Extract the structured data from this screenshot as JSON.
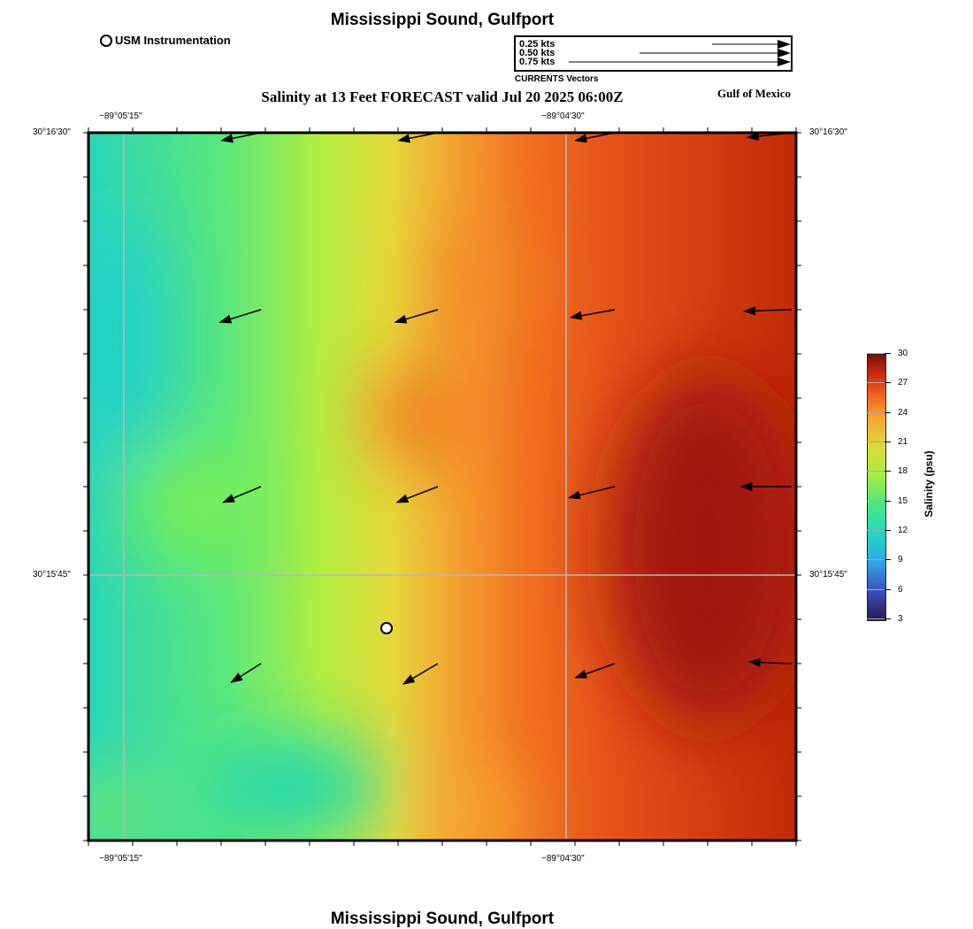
{
  "header": {
    "title": "Mississippi Sound, Gulfport",
    "subtitle": "Salinity at 13 Feet FORECAST valid Jul 20 2025 06:00Z",
    "region_label": "Gulf of Mexico",
    "station_legend": "USM Instrumentation",
    "footer_title": "Mississippi Sound, Gulfport"
  },
  "vector_legend": {
    "title": "CURRENTS Vectors",
    "entries": [
      {
        "label": "0.25 kts",
        "speed": 0.25
      },
      {
        "label": "0.50 kts",
        "speed": 0.5
      },
      {
        "label": "0.75 kts",
        "speed": 0.75
      }
    ]
  },
  "axes": {
    "lon_labels": [
      "−89°05'15\"",
      "−89°04'30\""
    ],
    "lat_labels": [
      "30°16'30\"",
      "30°15'45\""
    ]
  },
  "colorbar": {
    "label": "Salinity (psu)",
    "ticks": [
      "30",
      "27",
      "24",
      "21",
      "18",
      "15",
      "12",
      "9",
      "6",
      "3"
    ],
    "range": [
      3,
      30
    ],
    "colors": [
      "#2a1850",
      "#3a4fc0",
      "#2fa8e8",
      "#22d8c0",
      "#4de880",
      "#a8f040",
      "#e0d838",
      "#f8a030",
      "#f06020",
      "#c82a0a",
      "#7a1008"
    ]
  },
  "currents": [
    {
      "row": 0,
      "col": 0,
      "u": -0.25,
      "v": -0.05
    },
    {
      "row": 0,
      "col": 1,
      "u": -0.25,
      "v": -0.05
    },
    {
      "row": 0,
      "col": 2,
      "u": -0.25,
      "v": -0.05
    },
    {
      "row": 0,
      "col": 3,
      "u": -0.28,
      "v": -0.03
    },
    {
      "row": 1,
      "col": 0,
      "u": -0.26,
      "v": -0.08
    },
    {
      "row": 1,
      "col": 1,
      "u": -0.27,
      "v": -0.08
    },
    {
      "row": 1,
      "col": 2,
      "u": -0.28,
      "v": -0.05
    },
    {
      "row": 1,
      "col": 3,
      "u": -0.3,
      "v": -0.01
    },
    {
      "row": 2,
      "col": 0,
      "u": -0.24,
      "v": -0.1
    },
    {
      "row": 2,
      "col": 1,
      "u": -0.26,
      "v": -0.1
    },
    {
      "row": 2,
      "col": 2,
      "u": -0.29,
      "v": -0.07
    },
    {
      "row": 2,
      "col": 3,
      "u": -0.32,
      "v": 0.0
    },
    {
      "row": 3,
      "col": 0,
      "u": -0.19,
      "v": -0.12
    },
    {
      "row": 3,
      "col": 1,
      "u": -0.22,
      "v": -0.13
    },
    {
      "row": 3,
      "col": 2,
      "u": -0.25,
      "v": -0.09
    },
    {
      "row": 3,
      "col": 3,
      "u": -0.27,
      "v": 0.01
    }
  ]
}
